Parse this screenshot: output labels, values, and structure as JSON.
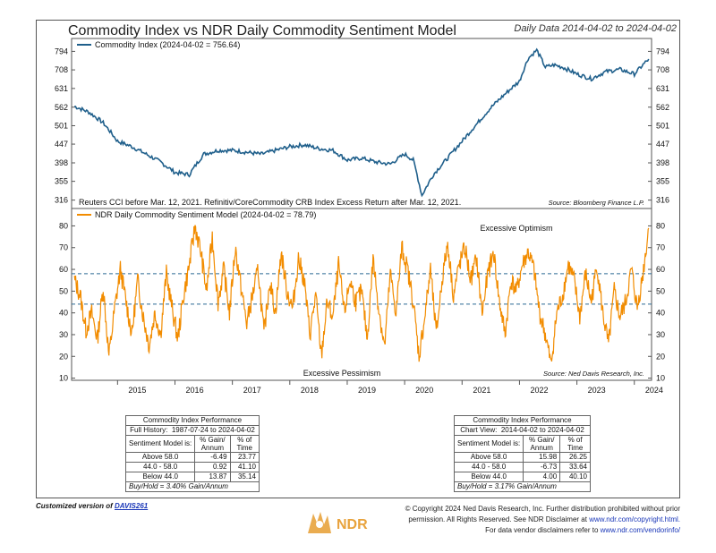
{
  "header": {
    "title": "Commodity Index vs NDR Daily Commodity Sentiment Model",
    "subtitle": "Daily Data 2014-04-02 to 2024-04-02"
  },
  "chart_data": [
    {
      "type": "line",
      "legend": "Commodity Index (2024-04-02 = 756.64)",
      "color": "#1f5f8b",
      "y_scale": "log",
      "y_ticks": [
        316,
        355,
        398,
        447,
        501,
        562,
        631,
        708,
        794
      ],
      "ylim": [
        300,
        860
      ],
      "note": "Reuters CCI before Mar. 12, 2021. Refinitiv/CoreCommodity CRB Index Excess Return after Mar. 12, 2021.",
      "source": "Source:  Bloomberg Finance L.P.",
      "x": [
        2014.25,
        2014.5,
        2014.75,
        2015.0,
        2015.25,
        2015.5,
        2015.75,
        2016.0,
        2016.25,
        2016.5,
        2016.75,
        2017.0,
        2017.25,
        2017.5,
        2017.75,
        2018.0,
        2018.25,
        2018.5,
        2018.75,
        2019.0,
        2019.25,
        2019.5,
        2019.75,
        2020.0,
        2020.15,
        2020.3,
        2020.5,
        2020.75,
        2021.0,
        2021.25,
        2021.5,
        2021.75,
        2022.0,
        2022.15,
        2022.3,
        2022.45,
        2022.6,
        2022.75,
        2023.0,
        2023.25,
        2023.5,
        2023.75,
        2024.0,
        2024.25
      ],
      "values": [
        565,
        545,
        510,
        455,
        440,
        420,
        400,
        375,
        370,
        420,
        430,
        430,
        425,
        420,
        430,
        440,
        445,
        435,
        430,
        405,
        410,
        400,
        395,
        420,
        405,
        325,
        370,
        410,
        455,
        505,
        560,
        610,
        660,
        760,
        800,
        720,
        730,
        720,
        690,
        670,
        700,
        710,
        690,
        757
      ]
    },
    {
      "type": "line",
      "legend": "NDR Daily Commodity Sentiment Model (2024-04-02 = 78.79)",
      "color": "#f28c00",
      "y_ticks": [
        10,
        20,
        30,
        40,
        50,
        60,
        70,
        80
      ],
      "ylim": [
        9,
        88
      ],
      "reference_lines": [
        58.0,
        44.0
      ],
      "labels": {
        "upper": "Excessive Optimism",
        "lower": "Excessive Pessimism"
      },
      "source": "Source:  Ned Davis Research, Inc.",
      "x_ticks": [
        "2015",
        "2016",
        "2017",
        "2018",
        "2019",
        "2020",
        "2021",
        "2022",
        "2023",
        "2024"
      ],
      "x": [
        2014.25,
        2014.35,
        2014.45,
        2014.55,
        2014.65,
        2014.75,
        2014.85,
        2014.95,
        2015.05,
        2015.15,
        2015.25,
        2015.35,
        2015.45,
        2015.55,
        2015.65,
        2015.75,
        2015.85,
        2015.95,
        2016.05,
        2016.15,
        2016.25,
        2016.35,
        2016.45,
        2016.55,
        2016.65,
        2016.75,
        2016.85,
        2016.95,
        2017.05,
        2017.15,
        2017.25,
        2017.35,
        2017.45,
        2017.55,
        2017.65,
        2017.75,
        2017.85,
        2017.95,
        2018.05,
        2018.15,
        2018.25,
        2018.35,
        2018.45,
        2018.55,
        2018.65,
        2018.75,
        2018.85,
        2018.95,
        2019.05,
        2019.15,
        2019.25,
        2019.35,
        2019.45,
        2019.55,
        2019.65,
        2019.75,
        2019.85,
        2019.95,
        2020.05,
        2020.15,
        2020.25,
        2020.35,
        2020.45,
        2020.55,
        2020.65,
        2020.75,
        2020.85,
        2020.95,
        2021.05,
        2021.15,
        2021.25,
        2021.35,
        2021.45,
        2021.55,
        2021.65,
        2021.75,
        2021.85,
        2021.95,
        2022.05,
        2022.15,
        2022.25,
        2022.35,
        2022.45,
        2022.55,
        2022.65,
        2022.75,
        2022.85,
        2022.95,
        2023.05,
        2023.15,
        2023.25,
        2023.35,
        2023.45,
        2023.55,
        2023.65,
        2023.75,
        2023.85,
        2023.95,
        2024.05,
        2024.15,
        2024.25
      ],
      "values": [
        55,
        48,
        32,
        40,
        28,
        52,
        20,
        42,
        60,
        45,
        30,
        55,
        38,
        25,
        40,
        30,
        58,
        42,
        28,
        48,
        62,
        80,
        68,
        50,
        75,
        45,
        60,
        40,
        70,
        52,
        35,
        48,
        60,
        30,
        55,
        40,
        68,
        50,
        42,
        65,
        55,
        30,
        48,
        20,
        45,
        38,
        62,
        40,
        55,
        45,
        50,
        28,
        65,
        42,
        24,
        58,
        40,
        70,
        60,
        45,
        20,
        38,
        60,
        30,
        55,
        72,
        48,
        62,
        70,
        55,
        65,
        40,
        58,
        68,
        45,
        30,
        55,
        50,
        62,
        68,
        60,
        40,
        30,
        16,
        40,
        48,
        62,
        55,
        38,
        58,
        45,
        62,
        40,
        25,
        50,
        38,
        45,
        60,
        42,
        58,
        79
      ]
    }
  ],
  "tables": [
    {
      "title": "Commodity Index Performance",
      "range_label": "Full History:",
      "range": "1987-07-24 to 2024-04-02",
      "col_label": "Sentiment Model is:",
      "col1": "% Gain/ Annum",
      "col2": "% of Time",
      "rows": [
        {
          "label": "Above 58.0",
          "gain": "-6.49",
          "time": "23.77"
        },
        {
          "label": "44.0 - 58.0",
          "gain": "0.92",
          "time": "41.10"
        },
        {
          "label": "Below 44.0",
          "gain": "13.87",
          "time": "35.14"
        }
      ],
      "buyhold": "Buy/Hold = 3.40% Gain/Annum"
    },
    {
      "title": "Commodity Index Performance",
      "range_label": "Chart View:",
      "range": "2014-04-02 to 2024-04-02",
      "col_label": "Sentiment Model is:",
      "col1": "% Gain/ Annum",
      "col2": "% of Time",
      "rows": [
        {
          "label": "Above 58.0",
          "gain": "15.98",
          "time": "26.25"
        },
        {
          "label": "44.0 - 58.0",
          "gain": "-6.73",
          "time": "33.64"
        },
        {
          "label": "Below 44.0",
          "gain": "4.00",
          "time": "40.10"
        }
      ],
      "buyhold": "Buy/Hold = 3.17% Gain/Annum"
    }
  ],
  "footer": {
    "custom_prefix": "Customized version of ",
    "custom_link": "DAVIS261",
    "copyright_line1": "© Copyright 2024 Ned Davis Research, Inc. Further distribution prohibited without prior",
    "copyright_line2a": "permission. All Rights Reserved. See NDR Disclaimer at ",
    "copyright_url1": "www.ndr.com/copyright.html.",
    "copyright_line3a": "For data vendor disclaimers refer to ",
    "copyright_url2": "www.ndr.com/vendorinfo/",
    "logo_text": "NDR"
  }
}
